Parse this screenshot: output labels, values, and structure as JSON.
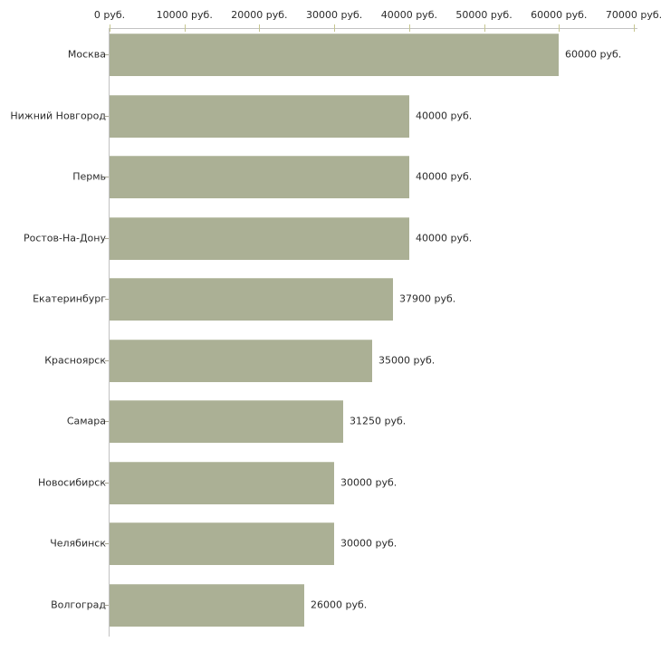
{
  "chart_data": {
    "type": "bar",
    "orientation": "horizontal",
    "title": "",
    "xlabel": "",
    "ylabel": "",
    "categories": [
      "Москва",
      "Нижний Новгород",
      "Пермь",
      "Ростов-На-Дону",
      "Екатеринбург",
      "Красноярск",
      "Самара",
      "Новосибирск",
      "Челябинск",
      "Волгоград"
    ],
    "values": [
      60000,
      40000,
      40000,
      40000,
      37900,
      35000,
      31250,
      30000,
      30000,
      26000
    ],
    "value_labels": [
      "60000 руб.",
      "40000 руб.",
      "40000 руб.",
      "40000 руб.",
      "37900 руб.",
      "35000 руб.",
      "31250 руб.",
      "30000 руб.",
      "30000 руб.",
      "26000 руб."
    ],
    "x_tick_labels": [
      "0 руб.",
      "10000 руб.",
      "20000 руб.",
      "30000 руб.",
      "40000 руб.",
      "50000 руб.",
      "60000 руб.",
      "70000 руб."
    ],
    "xlim": [
      0,
      70000
    ],
    "grid": false,
    "legend": null,
    "colors": {
      "bar_fill": "#abb095",
      "axis_line": "#c2c2c2",
      "x_tick_mark": "#c6c690",
      "y_tick_mark": "#a8a593",
      "text": "#2b2b2b",
      "background": "#ffffff"
    }
  }
}
